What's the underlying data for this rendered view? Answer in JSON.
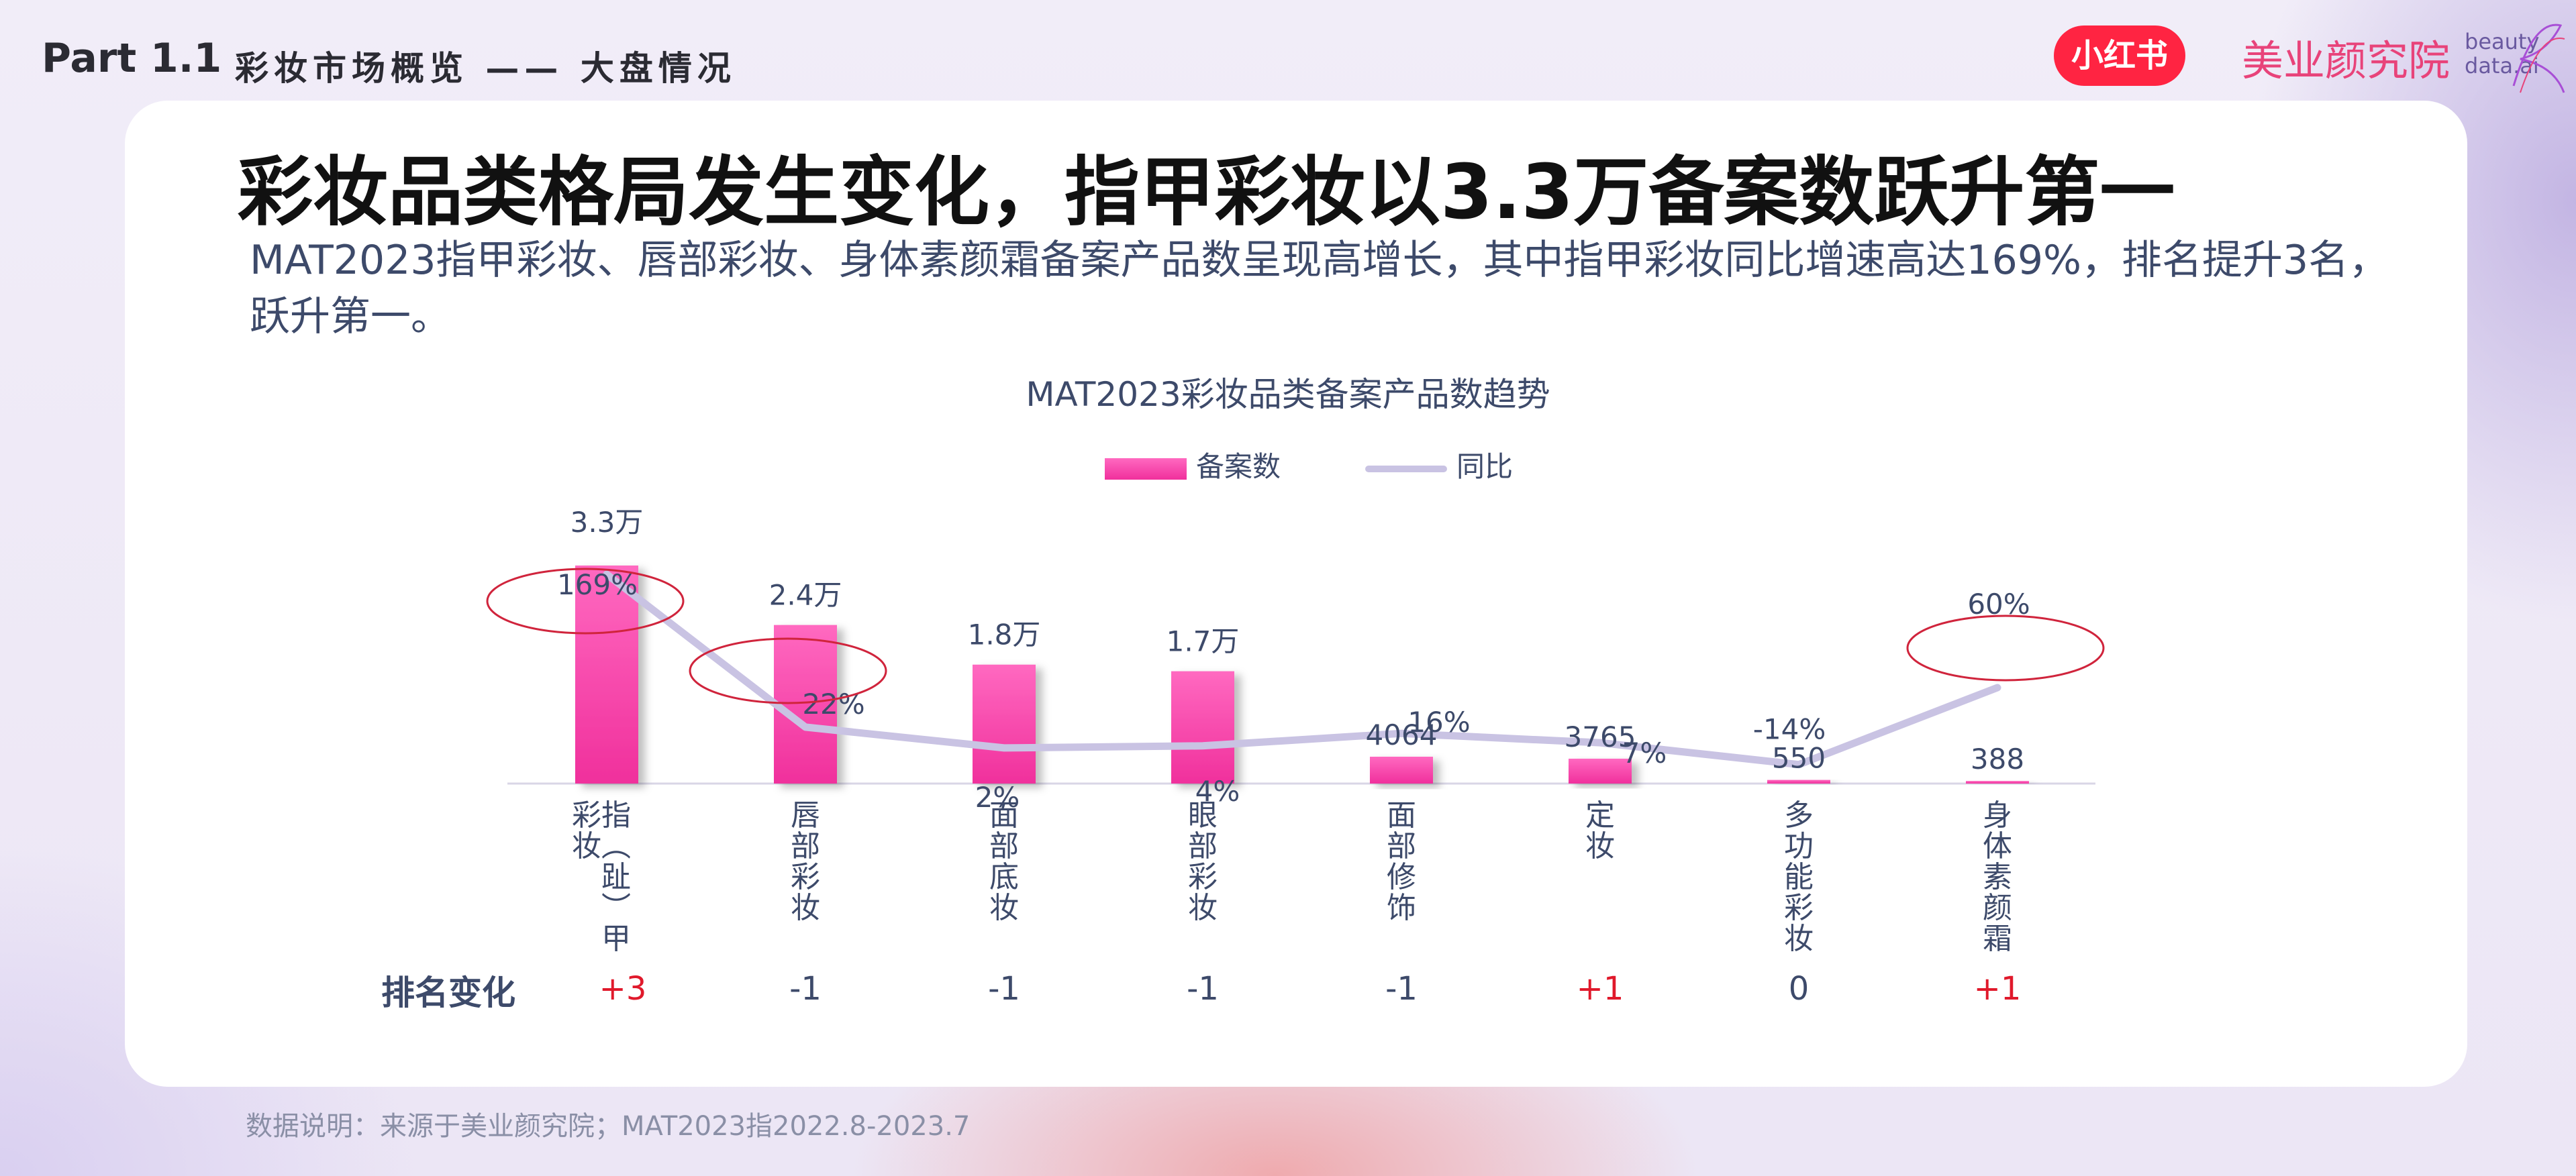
{
  "header": {
    "part": "Part 1.1",
    "section": "彩妆市场概览 —— 大盘情况"
  },
  "logos": {
    "xhs": "小红书",
    "institute": "美业颜究院",
    "beauty_line1": "beauty",
    "beauty_line2": "data.ai"
  },
  "title": "彩妆品类格局发生变化，指甲彩妆以3.3万备案数跃升第一",
  "subtitle": "MAT2023指甲彩妆、唇部彩妆、身体素颜霜备案产品数呈现高增长，其中指甲彩妆同比增速高达169%，排名提升3名，跃升第一。",
  "rank_label": "排名变化",
  "footnote": "数据说明：来源于美业颜究院；MAT2023指2022.8-2023.7",
  "colors": {
    "bar_top": "#ff69c0",
    "bar_bottom": "#f0309c",
    "line": "#c9c3e3",
    "highlight_ellipse": "#d0243c",
    "rank_positive": "#e0192b",
    "rank_neutral": "#3d4a6a"
  },
  "chart_data": {
    "type": "bar",
    "title": "MAT2023彩妆品类备案产品数趋势",
    "legend_position": "top-center",
    "grid": false,
    "categories": [
      "指（趾）甲彩妆",
      "唇部彩妆",
      "面部底妆",
      "眼部彩妆",
      "面部修饰",
      "定妆",
      "多功能彩妆",
      "身体素颜霜"
    ],
    "category_label_lines": [
      [
        "指（趾）甲",
        "彩妆"
      ],
      [
        "唇部彩妆"
      ],
      [
        "面部底妆"
      ],
      [
        "眼部彩妆"
      ],
      [
        "面部修饰"
      ],
      [
        "定妆"
      ],
      [
        "多功能彩妆"
      ],
      [
        "身体素颜霜"
      ]
    ],
    "series": [
      {
        "name": "备案数",
        "type": "bar",
        "values": [
          33000,
          24000,
          18000,
          17000,
          4064,
          3765,
          550,
          388
        ],
        "labels": [
          "3.3万",
          "2.4万",
          "1.8万",
          "1.7万",
          "4064",
          "3765",
          "550",
          "388"
        ]
      },
      {
        "name": "同比",
        "type": "line",
        "values": [
          169,
          22,
          2,
          4,
          16,
          7,
          -14,
          60
        ],
        "labels": [
          "169%",
          "22%",
          "2%",
          "4%",
          "16%",
          "7%",
          "-14%",
          "60%"
        ]
      }
    ],
    "highlighted": [
      "169%",
      "22%",
      "60%"
    ],
    "rank_change": [
      "+3",
      "-1",
      "-1",
      "-1",
      "-1",
      "+1",
      "0",
      "+1"
    ]
  }
}
